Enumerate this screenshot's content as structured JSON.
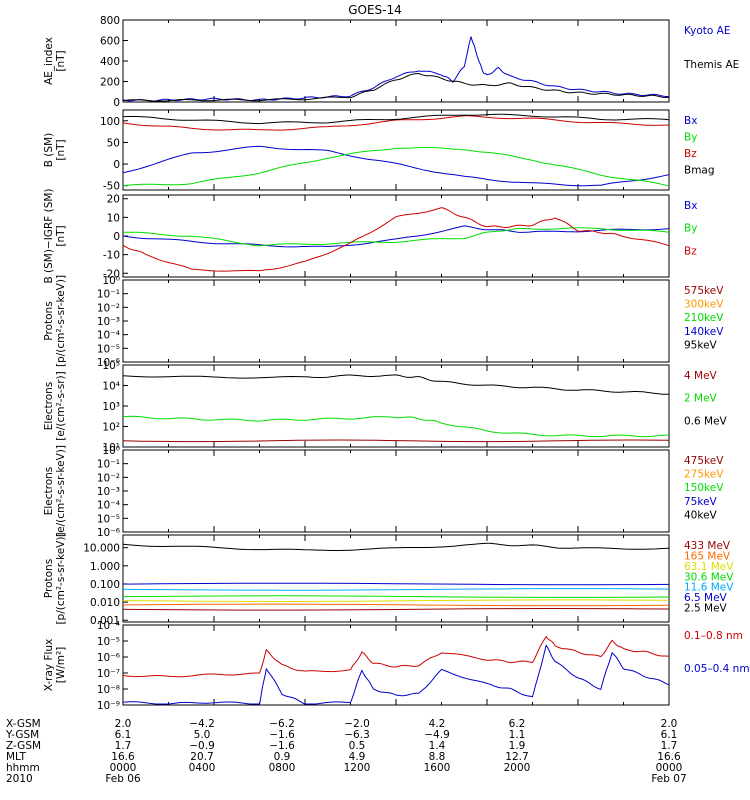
{
  "title": "GOES-14",
  "colors": {
    "black": "#000000",
    "blue": "#0000cc",
    "red": "#cc0000",
    "green": "#00dd00",
    "darkred": "#990000",
    "orange": "#ff9900",
    "cyan": "#00aaff",
    "yellow": "#dddd00"
  },
  "chart_data": [
    {
      "type": "line",
      "ylabel_lines": [
        "AE_index",
        "[nT]"
      ],
      "yscale": "linear",
      "ylim": [
        0,
        800
      ],
      "yticks": [
        "800",
        "600",
        "400",
        "200",
        "0"
      ],
      "series": [
        {
          "name": "Kyoto AE",
          "color": "#0000cc",
          "x": [
            0,
            1,
            2,
            3,
            4,
            5,
            6,
            7,
            8,
            9,
            10,
            11,
            12,
            13,
            14,
            14.5,
            15,
            15.3,
            15.5,
            15.8,
            16,
            16.5,
            17,
            18,
            19,
            20,
            21,
            22,
            23,
            24
          ],
          "y": [
            20,
            15,
            20,
            25,
            30,
            25,
            20,
            30,
            40,
            50,
            60,
            140,
            250,
            310,
            270,
            200,
            350,
            640,
            500,
            300,
            260,
            330,
            250,
            200,
            150,
            120,
            100,
            80,
            70,
            60
          ]
        },
        {
          "name": "Themis AE",
          "color": "#000000",
          "x": [
            0,
            2,
            4,
            6,
            8,
            10,
            11,
            12,
            13,
            14,
            15,
            16,
            17,
            18,
            19,
            20,
            21,
            22,
            23,
            24
          ],
          "y": [
            15,
            15,
            20,
            20,
            30,
            50,
            120,
            220,
            280,
            230,
            180,
            160,
            180,
            140,
            110,
            90,
            80,
            70,
            60,
            50
          ]
        }
      ]
    },
    {
      "type": "line",
      "ylabel_lines": [
        "B (SM)",
        "[nT]"
      ],
      "yscale": "linear",
      "ylim": [
        -60,
        125
      ],
      "yticks": [
        "100",
        "50",
        "0",
        "-50"
      ],
      "series": [
        {
          "name": "Bx",
          "color": "#0000cc",
          "x": [
            0,
            3,
            6,
            9,
            12,
            15,
            18,
            21,
            24
          ],
          "y": [
            -20,
            25,
            40,
            30,
            0,
            -30,
            -45,
            -50,
            -25
          ]
        },
        {
          "name": "By",
          "color": "#00dd00",
          "x": [
            0,
            3,
            6,
            9,
            12,
            15,
            18,
            21,
            24
          ],
          "y": [
            -50,
            -45,
            -20,
            15,
            38,
            35,
            10,
            -25,
            -50
          ]
        },
        {
          "name": "Bz",
          "color": "#cc0000",
          "x": [
            0,
            3,
            6,
            9,
            12,
            15,
            18,
            21,
            24
          ],
          "y": [
            95,
            82,
            78,
            85,
            100,
            110,
            105,
            95,
            90
          ]
        },
        {
          "name": "Bmag",
          "color": "#000000",
          "x": [
            0,
            3,
            6,
            9,
            12,
            15,
            18,
            21,
            24
          ],
          "y": [
            110,
            102,
            95,
            97,
            105,
            115,
            112,
            104,
            103
          ]
        }
      ]
    },
    {
      "type": "line",
      "ylabel_lines": [
        "B (SM)−IGRF (SM)",
        "[nT]"
      ],
      "yscale": "linear",
      "ylim": [
        -22,
        22
      ],
      "yticks": [
        "20",
        "10",
        "0",
        "-10",
        "-20"
      ],
      "series": [
        {
          "name": "Bx",
          "color": "#0000cc",
          "x": [
            0,
            3,
            6,
            9,
            12,
            15,
            16.5,
            18,
            21,
            24
          ],
          "y": [
            0,
            -3,
            -5,
            -6,
            -2,
            5,
            3,
            2,
            3,
            4
          ]
        },
        {
          "name": "By",
          "color": "#00dd00",
          "x": [
            0,
            3,
            6,
            9,
            12,
            15,
            16.5,
            18,
            21,
            24
          ],
          "y": [
            2,
            0,
            -5,
            -4,
            -3,
            -1,
            3,
            4,
            4,
            2
          ]
        },
        {
          "name": "Bz",
          "color": "#cc0000",
          "x": [
            0,
            1,
            3,
            6,
            8,
            10,
            12,
            14,
            15,
            16,
            17,
            18,
            19,
            20,
            21,
            22,
            24
          ],
          "y": [
            -5,
            -10,
            -18,
            -19,
            -14,
            -4,
            10,
            15,
            10,
            5,
            5,
            6,
            10,
            3,
            2,
            0,
            -5
          ]
        }
      ]
    },
    {
      "type": "line",
      "ylabel_lines": [
        "Protons",
        "[p/(cm²-s-sr-keV)]"
      ],
      "yscale": "log",
      "ylim": [
        1e-06,
        1
      ],
      "yticks": [
        "10⁰",
        "10⁻¹",
        "10⁻²",
        "10⁻³",
        "10⁻⁴",
        "10⁻⁵",
        "10⁻⁶"
      ],
      "series": [
        {
          "name": "575keV",
          "color": "#990000",
          "x": [],
          "y": []
        },
        {
          "name": "300keV",
          "color": "#ff9900",
          "x": [],
          "y": []
        },
        {
          "name": "210keV",
          "color": "#00dd00",
          "x": [],
          "y": []
        },
        {
          "name": "140keV",
          "color": "#0000cc",
          "x": [],
          "y": []
        },
        {
          "name": "95keV",
          "color": "#000000",
          "x": [],
          "y": []
        }
      ]
    },
    {
      "type": "line",
      "ylabel_lines": [
        "Electrons",
        "[e/(cm²-s-sr)]"
      ],
      "yscale": "log",
      "ylim": [
        10,
        100000
      ],
      "yticks": [
        "10⁵",
        "10⁴",
        "10³",
        "10²",
        "10¹"
      ],
      "series": [
        {
          "name": "4 MeV",
          "color": "#990000",
          "x": [
            0,
            12,
            24
          ],
          "y": [
            20,
            20,
            20
          ]
        },
        {
          "name": "2 MeV",
          "color": "#00dd00",
          "x": [
            0,
            2,
            4,
            6,
            8,
            10,
            12,
            13,
            14,
            16,
            18,
            20,
            22,
            24
          ],
          "y": [
            300,
            250,
            220,
            200,
            220,
            250,
            300,
            250,
            150,
            60,
            40,
            35,
            35,
            35
          ]
        },
        {
          "name": "0.6 MeV",
          "color": "#000000",
          "x": [
            0,
            4,
            8,
            10,
            12,
            13,
            14,
            16,
            18,
            20,
            22,
            24
          ],
          "y": [
            30000,
            25000,
            25000,
            30000,
            30000,
            25000,
            15000,
            10000,
            8000,
            6000,
            5000,
            4000
          ]
        }
      ]
    },
    {
      "type": "line",
      "ylabel_lines": [
        "Electrons",
        "[e/(cm²-s-sr-keV)]"
      ],
      "yscale": "log",
      "ylim": [
        1e-06,
        1
      ],
      "yticks": [
        "10⁰",
        "10⁻¹",
        "10⁻²",
        "10⁻³",
        "10⁻⁴",
        "10⁻⁵",
        "10⁻⁶"
      ],
      "series": [
        {
          "name": "475keV",
          "color": "#990000",
          "x": [],
          "y": []
        },
        {
          "name": "275keV",
          "color": "#ff9900",
          "x": [],
          "y": []
        },
        {
          "name": "150keV",
          "color": "#00dd00",
          "x": [],
          "y": []
        },
        {
          "name": "75keV",
          "color": "#0000cc",
          "x": [],
          "y": []
        },
        {
          "name": "40keV",
          "color": "#000000",
          "x": [],
          "y": []
        }
      ]
    },
    {
      "type": "line",
      "ylabel_lines": [
        "Protons",
        "[p/(cm²-s-sr-keV)]"
      ],
      "yscale": "log",
      "ylim": [
        0.0008,
        50
      ],
      "yticks": [
        "10.000",
        "1.000",
        "0.100",
        "0.010",
        "0.001"
      ],
      "series": [
        {
          "name": "433 MeV",
          "color": "#990000",
          "x": [
            0,
            24
          ],
          "y": [
            0.004,
            0.004
          ]
        },
        {
          "name": "165 MeV",
          "color": "#ff6600",
          "x": [
            0,
            24
          ],
          "y": [
            0.007,
            0.007
          ]
        },
        {
          "name": "63.1 MeV",
          "color": "#dddd00",
          "x": [
            0,
            24
          ],
          "y": [
            0.012,
            0.012
          ]
        },
        {
          "name": "30.6 MeV",
          "color": "#00dd00",
          "x": [
            0,
            24
          ],
          "y": [
            0.02,
            0.02
          ]
        },
        {
          "name": "11.6 MeV",
          "color": "#00aaff",
          "x": [
            0,
            24
          ],
          "y": [
            0.05,
            0.05
          ]
        },
        {
          "name": "6.5 MeV",
          "color": "#0000cc",
          "x": [
            0,
            24
          ],
          "y": [
            0.1,
            0.1
          ]
        },
        {
          "name": "2.5 MeV",
          "color": "#000000",
          "x": [
            0,
            4,
            8,
            12,
            16,
            18,
            20,
            24
          ],
          "y": [
            15,
            10,
            7,
            9,
            16,
            13,
            9,
            9
          ]
        }
      ]
    },
    {
      "type": "line",
      "ylabel_lines": [
        "X-ray Flux",
        "[W/m²]"
      ],
      "yscale": "log",
      "ylim": [
        1e-09,
        0.0001
      ],
      "yticks": [
        "10⁻⁴",
        "10⁻⁵",
        "10⁻⁶",
        "10⁻⁷",
        "10⁻⁸",
        "10⁻⁹"
      ],
      "series": [
        {
          "name": "0.1–0.8 nm",
          "color": "#cc0000",
          "x": [
            0,
            2,
            4,
            6,
            6.3,
            7,
            8,
            10,
            10.5,
            11,
            12,
            13,
            14,
            16,
            17,
            18,
            18.6,
            19,
            20,
            21,
            21.5,
            22,
            23,
            24
          ],
          "y": [
            7e-08,
            6e-08,
            8e-08,
            9e-08,
            2.5e-06,
            3e-07,
            1.2e-07,
            1.5e-07,
            2e-06,
            4e-07,
            2.5e-07,
            3e-07,
            2e-06,
            7e-07,
            5e-07,
            5e-07,
            2e-05,
            5e-06,
            2e-06,
            1e-06,
            1e-05,
            3e-06,
            2e-06,
            1e-06
          ]
        },
        {
          "name": "0.05–0.4 nm",
          "color": "#0000cc",
          "x": [
            0,
            2,
            4,
            6,
            6.3,
            7,
            8,
            10,
            10.5,
            11,
            12,
            13,
            14,
            16,
            17,
            18,
            18.6,
            19,
            20,
            21,
            21.5,
            22,
            23,
            24
          ],
          "y": [
            1.5e-09,
            1.2e-09,
            1.5e-09,
            1.2e-09,
            2e-07,
            5e-09,
            1.2e-09,
            1.5e-09,
            1.5e-07,
            1e-08,
            4e-09,
            5e-09,
            1.5e-07,
            2e-08,
            1e-08,
            3e-09,
            5e-06,
            5e-07,
            5e-08,
            1e-08,
            2e-06,
            2e-07,
            6e-08,
            2e-08
          ]
        }
      ]
    }
  ],
  "x_axis": {
    "row_labels": [
      "X-GSM",
      "Y-GSM",
      "Z-GSM",
      "MLT",
      "hhmm",
      "2010"
    ],
    "columns": [
      [
        "2.0",
        "6.1",
        "1.7",
        "16.6",
        "0000",
        "Feb 06"
      ],
      [
        "−4.2",
        "5.0",
        "−0.9",
        "20.7",
        "0400",
        ""
      ],
      [
        "−6.2",
        "−1.6",
        "−1.6",
        "0.9",
        "0800",
        ""
      ],
      [
        "−2.0",
        "−6.3",
        "0.5",
        "4.9",
        "1200",
        ""
      ],
      [
        "4.2",
        "−4.9",
        "1.4",
        "8.8",
        "1600",
        ""
      ],
      [
        "6.2",
        "1.1",
        "1.9",
        "12.7",
        "2000",
        ""
      ],
      [
        "2.0",
        "6.1",
        "1.7",
        "16.6",
        "0000",
        "Feb 07"
      ]
    ]
  }
}
